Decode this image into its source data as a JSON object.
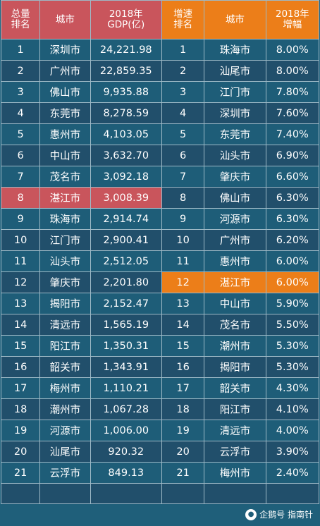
{
  "headers": {
    "rank": [
      "总量",
      "排名"
    ],
    "city": "城市",
    "gdp": [
      "2018年",
      "GDP(亿)"
    ],
    "growth_rank": [
      "增速",
      "排名"
    ],
    "growth_city": "城市",
    "growth": [
      "2018年",
      "增幅"
    ]
  },
  "rows": [
    {
      "rank": "1",
      "city": "深圳市",
      "gdp": "24,221.98",
      "grank": "1",
      "gcity": "珠海市",
      "growth": "8.00%"
    },
    {
      "rank": "2",
      "city": "广州市",
      "gdp": "22,859.35",
      "grank": "2",
      "gcity": "汕尾市",
      "growth": "8.00%"
    },
    {
      "rank": "3",
      "city": "佛山市",
      "gdp": "9,935.88",
      "grank": "3",
      "gcity": "江门市",
      "growth": "7.80%"
    },
    {
      "rank": "4",
      "city": "东莞市",
      "gdp": "8,278.59",
      "grank": "4",
      "gcity": "深圳市",
      "growth": "7.60%"
    },
    {
      "rank": "5",
      "city": "惠州市",
      "gdp": "4,103.05",
      "grank": "5",
      "gcity": "东莞市",
      "growth": "7.40%"
    },
    {
      "rank": "6",
      "city": "中山市",
      "gdp": "3,632.70",
      "grank": "6",
      "gcity": "汕头市",
      "growth": "6.90%"
    },
    {
      "rank": "7",
      "city": "茂名市",
      "gdp": "3,092.18",
      "grank": "7",
      "gcity": "肇庆市",
      "growth": "6.60%"
    },
    {
      "rank": "8",
      "city": "湛江市",
      "gdp": "3,008.39",
      "grank": "8",
      "gcity": "佛山市",
      "growth": "6.30%",
      "hl_left": true
    },
    {
      "rank": "9",
      "city": "珠海市",
      "gdp": "2,914.74",
      "grank": "9",
      "gcity": "河源市",
      "growth": "6.30%"
    },
    {
      "rank": "10",
      "city": "江门市",
      "gdp": "2,900.41",
      "grank": "10",
      "gcity": "广州市",
      "growth": "6.20%"
    },
    {
      "rank": "11",
      "city": "汕头市",
      "gdp": "2,512.05",
      "grank": "11",
      "gcity": "惠州市",
      "growth": "6.00%"
    },
    {
      "rank": "12",
      "city": "肇庆市",
      "gdp": "2,201.80",
      "grank": "12",
      "gcity": "湛江市",
      "growth": "6.00%",
      "hl_right": true
    },
    {
      "rank": "13",
      "city": "揭阳市",
      "gdp": "2,152.47",
      "grank": "13",
      "gcity": "中山市",
      "growth": "5.90%"
    },
    {
      "rank": "14",
      "city": "清远市",
      "gdp": "1,565.19",
      "grank": "14",
      "gcity": "茂名市",
      "growth": "5.50%"
    },
    {
      "rank": "15",
      "city": "阳江市",
      "gdp": "1,350.31",
      "grank": "15",
      "gcity": "潮州市",
      "growth": "5.30%"
    },
    {
      "rank": "16",
      "city": "韶关市",
      "gdp": "1,343.91",
      "grank": "16",
      "gcity": "揭阳市",
      "growth": "5.30%"
    },
    {
      "rank": "17",
      "city": "梅州市",
      "gdp": "1,110.21",
      "grank": "17",
      "gcity": "韶关市",
      "growth": "4.30%"
    },
    {
      "rank": "18",
      "city": "潮州市",
      "gdp": "1,067.28",
      "grank": "18",
      "gcity": "阳江市",
      "growth": "4.10%"
    },
    {
      "rank": "19",
      "city": "河源市",
      "gdp": "1,006.00",
      "grank": "19",
      "gcity": "清远市",
      "growth": "4.00%"
    },
    {
      "rank": "20",
      "city": "汕尾市",
      "gdp": "920.32",
      "grank": "20",
      "gcity": "云浮市",
      "growth": "3.90%"
    },
    {
      "rank": "21",
      "city": "云浮市",
      "gdp": "849.13",
      "grank": "21",
      "gcity": "梅州市",
      "growth": "2.40%"
    }
  ],
  "watermark": {
    "text": "企鹅号 指南针",
    "icon": "penguin-icon"
  },
  "colors": {
    "header_left": "#c9555c",
    "header_right": "#ec7e19",
    "row_bg": "#1e5d78",
    "highlight_red": "#c9555c",
    "highlight_orange": "#ec7e19"
  }
}
